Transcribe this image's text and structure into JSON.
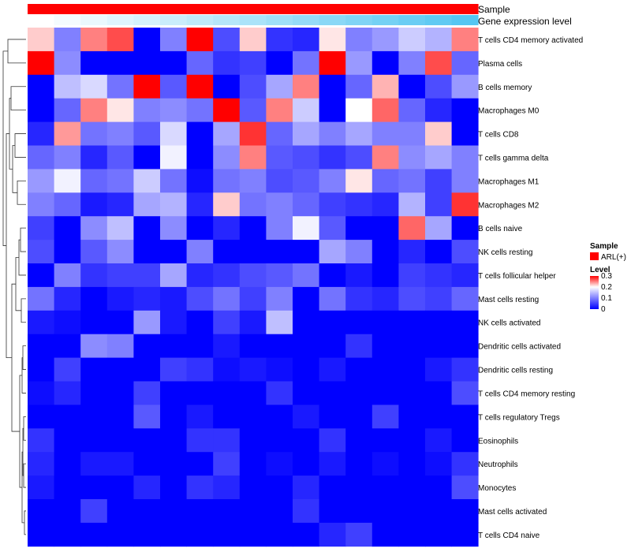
{
  "chart_data": {
    "type": "heatmap",
    "title": "",
    "annotations": [
      {
        "name": "Sample",
        "color": "#ff0000"
      },
      {
        "name": "Gene expression level",
        "colors": [
          "#ffffff",
          "#55c6f2"
        ]
      }
    ],
    "rows": [
      "T cells CD4 memory activated",
      "Plasma cells",
      "B cells memory",
      "Macrophages M0",
      "T cells CD8",
      "T cells gamma delta",
      "Macrophages M1",
      "Macrophages M2",
      "B cells naive",
      "NK cells resting",
      "T cells follicular helper",
      "Mast cells resting",
      "NK cells activated",
      "Dendritic cells activated",
      "Dendritic cells resting",
      "T cells CD4 memory resting",
      "T cells regulatory  Tregs",
      "Eosinophils",
      "Neutrophils",
      "Monocytes",
      "Mast cells activated",
      "T cells CD4 naive"
    ],
    "n_columns": 17,
    "values": [
      [
        0.22,
        0.1,
        0.25,
        0.27,
        0.0,
        0.1,
        0.3,
        0.06,
        0.22,
        0.04,
        0.03,
        0.21,
        0.1,
        0.12,
        0.16,
        0.14,
        0.25
      ],
      [
        0.3,
        0.11,
        0.0,
        0.0,
        0.0,
        0.0,
        0.08,
        0.04,
        0.05,
        0.0,
        0.09,
        0.3,
        0.12,
        0.0,
        0.1,
        0.27,
        0.08
      ],
      [
        0.0,
        0.15,
        0.17,
        0.09,
        0.3,
        0.07,
        0.3,
        0.0,
        0.06,
        0.13,
        0.25,
        0.0,
        0.08,
        0.23,
        0.0,
        0.06,
        0.12
      ],
      [
        0.0,
        0.08,
        0.25,
        0.21,
        0.1,
        0.11,
        0.09,
        0.3,
        0.07,
        0.25,
        0.16,
        0.0,
        0.2,
        0.26,
        0.08,
        0.03,
        0.0
      ],
      [
        0.03,
        0.24,
        0.09,
        0.1,
        0.07,
        0.17,
        0.0,
        0.13,
        0.28,
        0.08,
        0.13,
        0.1,
        0.13,
        0.1,
        0.1,
        0.22,
        0.0
      ],
      [
        0.08,
        0.1,
        0.03,
        0.07,
        0.0,
        0.19,
        0.0,
        0.11,
        0.25,
        0.07,
        0.06,
        0.04,
        0.06,
        0.25,
        0.11,
        0.13,
        0.1
      ],
      [
        0.12,
        0.19,
        0.08,
        0.09,
        0.16,
        0.09,
        0.01,
        0.09,
        0.1,
        0.06,
        0.07,
        0.1,
        0.21,
        0.08,
        0.09,
        0.05,
        0.1
      ],
      [
        0.1,
        0.08,
        0.02,
        0.03,
        0.13,
        0.14,
        0.03,
        0.22,
        0.09,
        0.1,
        0.08,
        0.05,
        0.04,
        0.03,
        0.14,
        0.05,
        0.28
      ],
      [
        0.05,
        0.0,
        0.11,
        0.15,
        0.0,
        0.11,
        0.0,
        0.03,
        0.0,
        0.1,
        0.19,
        0.07,
        0.0,
        0.0,
        0.26,
        0.13,
        0.0
      ],
      [
        0.06,
        0.0,
        0.07,
        0.11,
        0.0,
        0.0,
        0.1,
        0.0,
        0.0,
        0.0,
        0.0,
        0.13,
        0.1,
        0.0,
        0.03,
        0.0,
        0.06
      ],
      [
        0.0,
        0.1,
        0.04,
        0.05,
        0.05,
        0.13,
        0.03,
        0.04,
        0.06,
        0.07,
        0.09,
        0.0,
        0.02,
        0.0,
        0.05,
        0.04,
        0.03
      ],
      [
        0.09,
        0.03,
        0.0,
        0.02,
        0.03,
        0.02,
        0.06,
        0.09,
        0.05,
        0.1,
        0.0,
        0.09,
        0.04,
        0.03,
        0.06,
        0.05,
        0.08
      ],
      [
        0.02,
        0.01,
        0.0,
        0.0,
        0.12,
        0.02,
        0.0,
        0.05,
        0.02,
        0.15,
        0.0,
        0.0,
        0.0,
        0.0,
        0.0,
        0.0,
        0.0
      ],
      [
        0.0,
        0.0,
        0.11,
        0.1,
        0.0,
        0.0,
        0.0,
        0.02,
        0.0,
        0.0,
        0.0,
        0.0,
        0.04,
        0.0,
        0.0,
        0.0,
        0.0
      ],
      [
        0.0,
        0.05,
        0.0,
        0.0,
        0.0,
        0.05,
        0.04,
        0.01,
        0.02,
        0.01,
        0.0,
        0.02,
        0.0,
        0.0,
        0.0,
        0.02,
        0.04
      ],
      [
        0.01,
        0.03,
        0.0,
        0.0,
        0.05,
        0.0,
        0.0,
        0.0,
        0.0,
        0.04,
        0.0,
        0.0,
        0.0,
        0.0,
        0.0,
        0.0,
        0.06
      ],
      [
        0.0,
        0.0,
        0.0,
        0.0,
        0.07,
        0.0,
        0.02,
        0.0,
        0.0,
        0.0,
        0.02,
        0.0,
        0.0,
        0.05,
        0.0,
        0.0,
        0.0
      ],
      [
        0.04,
        0.0,
        0.0,
        0.0,
        0.0,
        0.0,
        0.04,
        0.04,
        0.0,
        0.0,
        0.0,
        0.04,
        0.0,
        0.0,
        0.0,
        0.02,
        0.0
      ],
      [
        0.03,
        0.0,
        0.02,
        0.02,
        0.0,
        0.0,
        0.0,
        0.05,
        0.0,
        0.01,
        0.0,
        0.02,
        0.0,
        0.01,
        0.0,
        0.01,
        0.04
      ],
      [
        0.02,
        0.0,
        0.0,
        0.0,
        0.03,
        0.0,
        0.04,
        0.03,
        0.0,
        0.0,
        0.03,
        0.0,
        0.0,
        0.0,
        0.0,
        0.0,
        0.06
      ],
      [
        0.0,
        0.0,
        0.05,
        0.0,
        0.0,
        0.0,
        0.0,
        0.0,
        0.0,
        0.0,
        0.04,
        0.0,
        0.0,
        0.0,
        0.0,
        0.0,
        0.0
      ],
      [
        0.0,
        0.0,
        0.0,
        0.0,
        0.0,
        0.0,
        0.0,
        0.0,
        0.0,
        0.0,
        0.0,
        0.03,
        0.05,
        0.0,
        0.0,
        0.0,
        0.0
      ]
    ],
    "color_scale": {
      "min": 0,
      "max": 0.3,
      "low": "#0000ff",
      "mid": "#ffffff",
      "high": "#ff0000",
      "mid_value": 0.2
    },
    "legend": {
      "sample_title": "Sample",
      "sample_entry": "ARL(+)",
      "level_title": "Level",
      "level_ticks": [
        "0.3",
        "0.2",
        "0.1",
        "0"
      ]
    },
    "dendrogram": "rows clustered (hierarchical)"
  }
}
